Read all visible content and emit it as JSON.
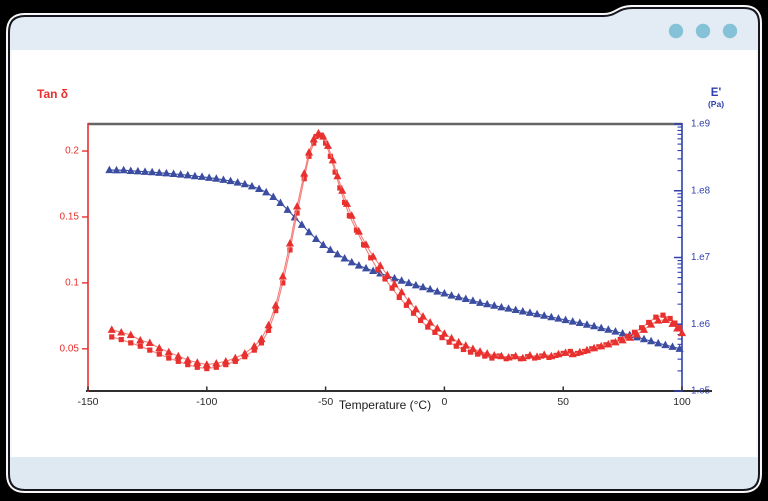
{
  "window": {
    "header_color": "#e3ecf4",
    "footer_color": "#dfe9f1",
    "outline_color": "#16161e",
    "halo_color": "#f8f8f8",
    "dot_color": "#85c1d7",
    "content_bg": "#ffffff"
  },
  "chart_data": {
    "type": "line",
    "title": "",
    "xlabel": "Temperature (°C)",
    "xlim": [
      -150,
      100
    ],
    "x_ticks": [
      -150,
      -100,
      -50,
      0,
      50,
      100
    ],
    "frame": {
      "top_color": "#666666",
      "bottom_color": "#2e2e2e"
    },
    "left_axis": {
      "label": "Tan δ",
      "color": "#e8312e",
      "scale": "linear",
      "lim": [
        0.018,
        0.2205
      ],
      "ticks": [
        0.05,
        0.1,
        0.15,
        0.2
      ]
    },
    "right_axis": {
      "label": "E'",
      "unit": "(Pa)",
      "color": "#2f3fae",
      "scale": "log",
      "lim": [
        100000.0,
        1000000000.0
      ],
      "ticks": [
        {
          "label": "1.e9",
          "v": 1000000000.0
        },
        {
          "label": "1.e8",
          "v": 100000000.0
        },
        {
          "label": "1.e7",
          "v": 10000000.0
        },
        {
          "label": "1.e6",
          "v": 1000000.0
        },
        {
          "label": "1.e5",
          "v": 100000.0
        }
      ]
    },
    "series": [
      {
        "name": "storage-modulus-e-prime",
        "axis": "right",
        "marker": "triangle",
        "marker_size": 7,
        "color": "#3b4da1",
        "line_color": "#3b4da1",
        "points": [
          [
            -141,
            205000000.0
          ],
          [
            -138,
            203000000.0
          ],
          [
            -135,
            204000000.0
          ],
          [
            -132,
            199000000.0
          ],
          [
            -129,
            196000000.0
          ],
          [
            -126,
            193000000.0
          ],
          [
            -123,
            190000000.0
          ],
          [
            -120,
            186000000.0
          ],
          [
            -117,
            183000000.0
          ],
          [
            -114,
            179000000.0
          ],
          [
            -111,
            175000000.0
          ],
          [
            -108,
            171000000.0
          ],
          [
            -105,
            166000000.0
          ],
          [
            -102,
            162000000.0
          ],
          [
            -99,
            157000000.0
          ],
          [
            -96,
            152000000.0
          ],
          [
            -93,
            146000000.0
          ],
          [
            -90,
            140000000.0
          ],
          [
            -87,
            133000000.0
          ],
          [
            -84,
            126000000.0
          ],
          [
            -81,
            117000000.0
          ],
          [
            -78,
            107000000.0
          ],
          [
            -75,
            95000000.0
          ],
          [
            -72,
            81000000.0
          ],
          [
            -69,
            66000000.0
          ],
          [
            -66,
            52000000.0
          ],
          [
            -63,
            40000000.0
          ],
          [
            -60,
            31000000.0
          ],
          [
            -57,
            24000000.0
          ],
          [
            -54,
            19000000.0
          ],
          [
            -51,
            15500000.0
          ],
          [
            -48,
            13000000.0
          ],
          [
            -45,
            11200000.0
          ],
          [
            -42,
            9700000.0
          ],
          [
            -39,
            8500000.0
          ],
          [
            -36,
            7600000.0
          ],
          [
            -33,
            6900000.0
          ],
          [
            -30,
            6300000.0
          ],
          [
            -27,
            5800000.0
          ],
          [
            -24,
            5300000.0
          ],
          [
            -21,
            4900000.0
          ],
          [
            -18,
            4500000.0
          ],
          [
            -15,
            4150000.0
          ],
          [
            -12,
            3850000.0
          ],
          [
            -9,
            3600000.0
          ],
          [
            -6,
            3350000.0
          ],
          [
            -3,
            3100000.0
          ],
          [
            0,
            2900000.0
          ],
          [
            3,
            2700000.0
          ],
          [
            6,
            2550000.0
          ],
          [
            9,
            2400000.0
          ],
          [
            12,
            2250000.0
          ],
          [
            15,
            2100000.0
          ],
          [
            18,
            2000000.0
          ],
          [
            21,
            1900000.0
          ],
          [
            24,
            1800000.0
          ],
          [
            27,
            1720000.0
          ],
          [
            30,
            1640000.0
          ],
          [
            33,
            1560000.0
          ],
          [
            36,
            1490000.0
          ],
          [
            39,
            1420000.0
          ],
          [
            42,
            1350000.0
          ],
          [
            45,
            1280000.0
          ],
          [
            48,
            1220000.0
          ],
          [
            51,
            1160000.0
          ],
          [
            54,
            1100000.0
          ],
          [
            57,
            1050000.0
          ],
          [
            60,
            990000.0
          ],
          [
            63,
            940000.0
          ],
          [
            66,
            880000.0
          ],
          [
            69,
            830000.0
          ],
          [
            72,
            780000.0
          ],
          [
            75,
            730000.0
          ],
          [
            78,
            690000.0
          ],
          [
            81,
            640000.0
          ],
          [
            84,
            600000.0
          ],
          [
            87,
            560000.0
          ],
          [
            90,
            520000.0
          ],
          [
            93,
            490000.0
          ],
          [
            96,
            460000.0
          ],
          [
            99,
            430000.0
          ]
        ]
      },
      {
        "name": "tan-delta-run2-squares",
        "axis": "left",
        "marker": "square",
        "marker_size": 5.2,
        "color": "#e8312e",
        "line_color": "#f37f7c",
        "points": [
          [
            -140,
            0.059
          ],
          [
            -136,
            0.057
          ],
          [
            -132,
            0.0545
          ],
          [
            -128,
            0.052
          ],
          [
            -124,
            0.049
          ],
          [
            -120,
            0.046
          ],
          [
            -116,
            0.043
          ],
          [
            -112,
            0.0405
          ],
          [
            -108,
            0.038
          ],
          [
            -104,
            0.036
          ],
          [
            -100,
            0.035
          ],
          [
            -96,
            0.036
          ],
          [
            -92,
            0.038
          ],
          [
            -88,
            0.0405
          ],
          [
            -84,
            0.044
          ],
          [
            -80,
            0.049
          ],
          [
            -77,
            0.0545
          ],
          [
            -74,
            0.064
          ],
          [
            -71,
            0.079
          ],
          [
            -68,
            0.1
          ],
          [
            -65,
            0.125
          ],
          [
            -62,
            0.153
          ],
          [
            -59,
            0.179
          ],
          [
            -57,
            0.196
          ],
          [
            -55,
            0.206
          ],
          [
            -54,
            0.211
          ],
          [
            -52,
            0.212
          ],
          [
            -50,
            0.206
          ],
          [
            -48,
            0.196
          ],
          [
            -46,
            0.184
          ],
          [
            -44,
            0.172
          ],
          [
            -42,
            0.161
          ],
          [
            -40,
            0.151
          ],
          [
            -37,
            0.14
          ],
          [
            -34,
            0.129
          ],
          [
            -31,
            0.119
          ],
          [
            -28,
            0.11
          ],
          [
            -25,
            0.103
          ],
          [
            -22,
            0.096
          ],
          [
            -19,
            0.089
          ],
          [
            -16,
            0.083
          ],
          [
            -13,
            0.077
          ],
          [
            -10,
            0.0715
          ],
          [
            -7,
            0.0665
          ],
          [
            -4,
            0.0625
          ],
          [
            -1,
            0.0585
          ],
          [
            2,
            0.055
          ],
          [
            5,
            0.052
          ],
          [
            8,
            0.0495
          ],
          [
            11,
            0.0475
          ],
          [
            14,
            0.046
          ],
          [
            17,
            0.0445
          ],
          [
            20,
            0.043
          ],
          [
            23,
            0.0445
          ],
          [
            26,
            0.0425
          ],
          [
            29,
            0.044
          ],
          [
            32,
            0.0425
          ],
          [
            35,
            0.044
          ],
          [
            38,
            0.043
          ],
          [
            41,
            0.0445
          ],
          [
            44,
            0.0435
          ],
          [
            47,
            0.045
          ],
          [
            50,
            0.0465
          ],
          [
            53,
            0.048
          ],
          [
            56,
            0.0465
          ],
          [
            59,
            0.048
          ],
          [
            62,
            0.05
          ],
          [
            65,
            0.0515
          ],
          [
            68,
            0.053
          ],
          [
            71,
            0.055
          ],
          [
            74,
            0.057
          ],
          [
            77,
            0.0595
          ],
          [
            80,
            0.0625
          ],
          [
            83,
            0.066
          ],
          [
            86,
            0.07
          ],
          [
            89,
            0.074
          ],
          [
            92,
            0.0755
          ],
          [
            95,
            0.073
          ],
          [
            97,
            0.0695
          ],
          [
            99,
            0.066
          ]
        ]
      },
      {
        "name": "tan-delta-run1-triangles",
        "axis": "left",
        "marker": "triangle",
        "marker_size": 7,
        "color": "#e8312e",
        "line_color": "#f37f7c",
        "points": [
          [
            -140,
            0.0645
          ],
          [
            -136,
            0.0625
          ],
          [
            -132,
            0.0605
          ],
          [
            -128,
            0.0565
          ],
          [
            -124,
            0.0545
          ],
          [
            -120,
            0.0505
          ],
          [
            -116,
            0.0475
          ],
          [
            -112,
            0.0445
          ],
          [
            -108,
            0.0415
          ],
          [
            -104,
            0.0395
          ],
          [
            -100,
            0.038
          ],
          [
            -96,
            0.039
          ],
          [
            -92,
            0.0405
          ],
          [
            -88,
            0.043
          ],
          [
            -84,
            0.0465
          ],
          [
            -80,
            0.052
          ],
          [
            -77,
            0.0575
          ],
          [
            -74,
            0.068
          ],
          [
            -71,
            0.083
          ],
          [
            -68,
            0.105
          ],
          [
            -65,
            0.13
          ],
          [
            -62,
            0.158
          ],
          [
            -59,
            0.183
          ],
          [
            -57,
            0.199
          ],
          [
            -55,
            0.209
          ],
          [
            -53,
            0.2135
          ],
          [
            -51,
            0.211
          ],
          [
            -49,
            0.204
          ],
          [
            -47,
            0.193
          ],
          [
            -45,
            0.181
          ],
          [
            -43,
            0.17
          ],
          [
            -41,
            0.16
          ],
          [
            -39,
            0.151
          ],
          [
            -36,
            0.139
          ],
          [
            -33,
            0.129
          ],
          [
            -30,
            0.12
          ],
          [
            -27,
            0.113
          ],
          [
            -24,
            0.106
          ],
          [
            -21,
            0.099
          ],
          [
            -18,
            0.093
          ],
          [
            -15,
            0.086
          ],
          [
            -12,
            0.08
          ],
          [
            -9,
            0.0745
          ],
          [
            -6,
            0.07
          ],
          [
            -3,
            0.0655
          ],
          [
            0,
            0.0615
          ],
          [
            3,
            0.058
          ],
          [
            6,
            0.055
          ],
          [
            9,
            0.0525
          ],
          [
            12,
            0.05
          ],
          [
            15,
            0.048
          ],
          [
            18,
            0.0465
          ],
          [
            21,
            0.045
          ],
          [
            24,
            0.0445
          ],
          [
            27,
            0.0435
          ],
          [
            30,
            0.0445
          ],
          [
            33,
            0.043
          ],
          [
            36,
            0.045
          ],
          [
            39,
            0.044
          ],
          [
            42,
            0.0455
          ],
          [
            45,
            0.0445
          ],
          [
            48,
            0.046
          ],
          [
            51,
            0.047
          ],
          [
            54,
            0.046
          ],
          [
            57,
            0.0475
          ],
          [
            60,
            0.049
          ],
          [
            63,
            0.0505
          ],
          [
            66,
            0.052
          ],
          [
            69,
            0.0535
          ],
          [
            72,
            0.055
          ],
          [
            75,
            0.0565
          ],
          [
            78,
            0.0585
          ],
          [
            81,
            0.061
          ],
          [
            84,
            0.0645
          ],
          [
            87,
            0.0685
          ],
          [
            90,
            0.0715
          ],
          [
            93,
            0.072
          ],
          [
            96,
            0.069
          ],
          [
            98,
            0.0655
          ],
          [
            100,
            0.062
          ]
        ]
      }
    ]
  }
}
